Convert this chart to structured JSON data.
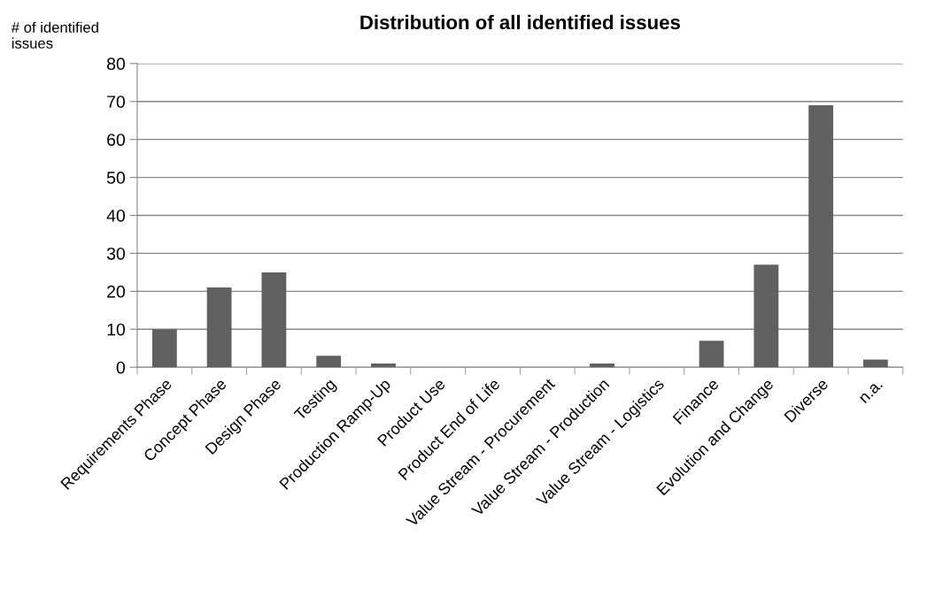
{
  "chart_data": {
    "type": "bar",
    "title": "Distribution of all identified issues",
    "ylabel": "# of identified\nissues",
    "categories": [
      "Requirements Phase",
      "Concept Phase",
      "Design Phase",
      "Testing",
      "Production Ramp-Up",
      "Product Use",
      "Product End of Life",
      "Value Stream - Procurement",
      "Value Stream - Production",
      "Value Stream - Logistics",
      "Finance",
      "Evolution and Change",
      "Diverse",
      "n.a."
    ],
    "values": [
      10,
      21,
      25,
      3,
      1,
      0,
      0,
      0,
      1,
      0,
      7,
      27,
      69,
      2
    ],
    "color": "#606060",
    "ylim": [
      0,
      80
    ],
    "yticks": [
      0,
      10,
      20,
      30,
      40,
      50,
      60,
      70,
      80
    ],
    "grid": "y",
    "legend": false
  }
}
